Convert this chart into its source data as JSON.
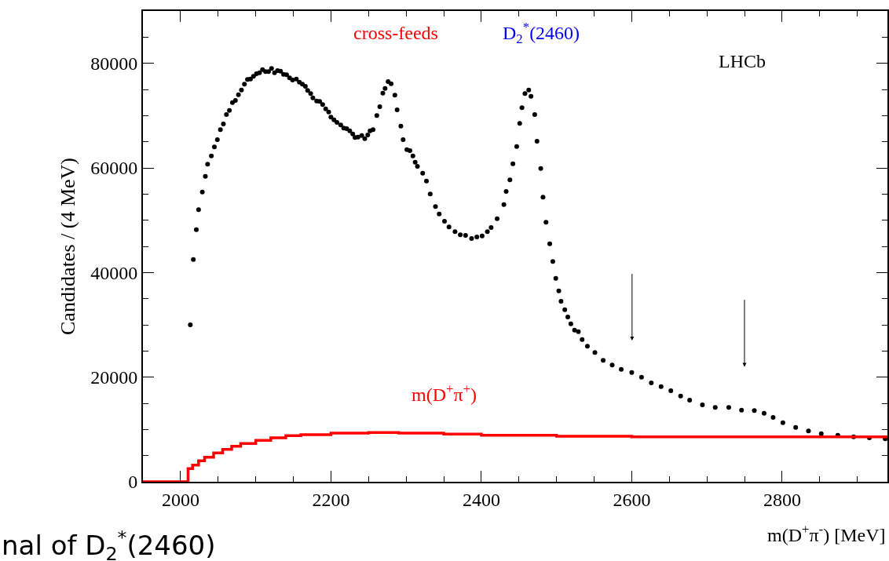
{
  "chart_data": {
    "type": "scatter",
    "xlabel": "m(D$^{+}$π$^{-}$) [MeV]",
    "ylabel": "Candidates / (4 MeV)",
    "annotations": [
      "cross-feeds",
      "D$_{2}$$^{*}$(2460)",
      "LHCb",
      "nal of D$_{2}$$^{*}$(2460)"
    ],
    "series": [
      {
        "color": "#000000",
        "marker": "circle",
        "x": [
          2013,
          2017,
          2021,
          2024,
          2029,
          2033,
          2036,
          2041,
          2045,
          2049,
          2053,
          2057,
          2061,
          2065,
          2069,
          2073,
          2077,
          2081,
          2085,
          2089,
          2093,
          2097,
          2101,
          2105,
          2109,
          2113,
          2117,
          2121,
          2125,
          2129,
          2133,
          2137,
          2141,
          2145,
          2149,
          2154,
          2158,
          2162,
          2166,
          2169,
          2173,
          2176,
          2181,
          2185,
          2189,
          2193,
          2197,
          2200,
          2204,
          2208,
          2213,
          2217,
          2221,
          2225,
          2229,
          2232,
          2236,
          2241,
          2245,
          2249,
          2252,
          2256,
          2261,
          2265,
          2269,
          2272,
          2276,
          2280,
          2285,
          2288,
          2293,
          2296,
          2301,
          2305,
          2309,
          2312,
          2315,
          2322,
          2327,
          2332,
          2339,
          2344,
          2351,
          2357,
          2365,
          2372,
          2379,
          2387,
          2394,
          2401,
          2408,
          2413,
          2421,
          2430,
          2433,
          2438,
          2442,
          2447,
          2451,
          2454,
          2458,
          2463,
          2466,
          2471,
          2474,
          2479,
          2482,
          2486,
          2491,
          2495,
          2499,
          2503,
          2506,
          2511,
          2515,
          2519,
          2524,
          2529,
          2534,
          2541,
          2551,
          2562,
          2574,
          2586,
          2600,
          2613,
          2626,
          2639,
          2652,
          2665,
          2677,
          2694,
          2711,
          2729,
          2746,
          2763,
          2776,
          2788,
          2801,
          2818,
          2835,
          2852,
          2874,
          2895,
          2916,
          2937
        ],
        "values": [
          30000,
          42500,
          48200,
          52000,
          55400,
          58400,
          60700,
          62300,
          64000,
          65400,
          67300,
          68400,
          70200,
          71000,
          72500,
          72900,
          74000,
          74900,
          76000,
          76900,
          77000,
          77500,
          78000,
          78200,
          78800,
          78400,
          78400,
          79000,
          78200,
          78600,
          78500,
          77900,
          77800,
          77200,
          76800,
          77000,
          76400,
          76000,
          75600,
          74800,
          74200,
          73400,
          72800,
          72700,
          72100,
          71300,
          70700,
          69700,
          69200,
          68700,
          68200,
          67600,
          67500,
          67100,
          66500,
          65800,
          65900,
          66200,
          65600,
          66300,
          67100,
          67300,
          70000,
          71700,
          74300,
          75200,
          76500,
          76100,
          73900,
          71100,
          68000,
          65400,
          63500,
          63300,
          62300,
          61100,
          60300,
          59000,
          57500,
          55000,
          52600,
          51200,
          49800,
          48700,
          47800,
          47200,
          47100,
          46500,
          46800,
          47000,
          47800,
          48600,
          50300,
          53000,
          55500,
          57700,
          60800,
          64100,
          68500,
          71500,
          74200,
          74900,
          73700,
          70200,
          65100,
          59900,
          54400,
          49600,
          45500,
          42100,
          38900,
          36500,
          34500,
          32900,
          31500,
          30200,
          29000,
          28700,
          27200,
          25900,
          24700,
          23200,
          22300,
          21500,
          20900,
          20000,
          18900,
          18200,
          17400,
          16400,
          15600,
          14700,
          14200,
          14200,
          13700,
          13600,
          13100,
          12300,
          11300,
          10400,
          9700,
          9200,
          8900,
          8600,
          8400,
          8200
        ]
      },
      {
        "type": "step",
        "name": "m(D$^{+}$π$^{+}$)",
        "color": "#ff0000",
        "x": [
          1950,
          2010,
          2016,
          2024,
          2032,
          2044,
          2056,
          2068,
          2080,
          2100,
          2120,
          2140,
          2160,
          2200,
          2250,
          2290,
          2350,
          2400,
          2500,
          2600,
          2700,
          2800,
          2900,
          2940
        ],
        "values": [
          0,
          2500,
          3200,
          4000,
          4700,
          5500,
          6200,
          6800,
          7300,
          7900,
          8400,
          8800,
          9000,
          9300,
          9400,
          9300,
          9100,
          8900,
          8700,
          8600,
          8600,
          8600,
          8600,
          8600
        ]
      }
    ],
    "xlim": [
      1950,
      2940
    ],
    "xticks": [
      2000,
      2200,
      2400,
      2600,
      2800
    ],
    "ylim": [
      0,
      90000
    ],
    "yticks": [
      0,
      20000,
      40000,
      60000,
      80000
    ],
    "legend": false
  }
}
